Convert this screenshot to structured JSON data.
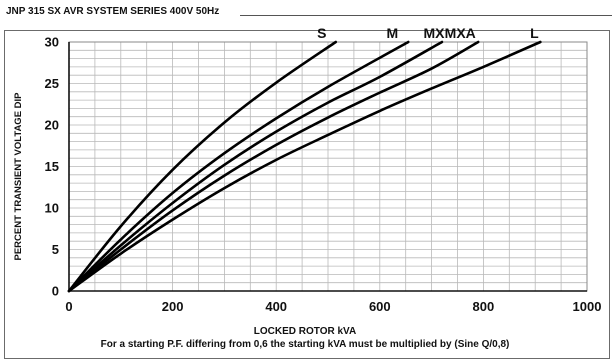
{
  "header": {
    "title": "JNP 315 SX AVR SYSTEM SERIES 400V 50Hz"
  },
  "chart_data": {
    "type": "line",
    "title": "",
    "xlabel": "LOCKED ROTOR kVA",
    "ylabel": "PERCENT TRANSIENT VOLTAGE DIP",
    "note": "For a starting P.F. differing from 0,6 the starting kVA must be multiplied by (Sine Q/0,8)",
    "xlim": [
      0,
      1000
    ],
    "ylim": [
      0,
      30
    ],
    "x_ticks": [
      "0",
      "200",
      "400",
      "600",
      "800",
      "1000"
    ],
    "y_ticks": [
      "0",
      "5",
      "10",
      "15",
      "20",
      "25",
      "30"
    ],
    "grid": true,
    "legend": "labels at curve ends (top)",
    "line_color": "#000000",
    "series": [
      {
        "name": "S",
        "x": [
          0,
          100,
          200,
          300,
          400,
          515
        ],
        "y": [
          0,
          7.8,
          14.6,
          20.3,
          25.1,
          30
        ]
      },
      {
        "name": "M",
        "x": [
          0,
          100,
          200,
          300,
          400,
          500,
          655
        ],
        "y": [
          0,
          6.2,
          11.8,
          16.6,
          20.8,
          24.6,
          30
        ]
      },
      {
        "name": "MX",
        "x": [
          0,
          100,
          200,
          300,
          400,
          500,
          600,
          720
        ],
        "y": [
          0,
          5.5,
          10.6,
          15.2,
          19.2,
          22.7,
          25.8,
          30
        ]
      },
      {
        "name": "MXA",
        "x": [
          0,
          100,
          200,
          300,
          400,
          500,
          600,
          700,
          790
        ],
        "y": [
          0,
          5.0,
          9.7,
          13.9,
          17.6,
          20.9,
          23.9,
          26.8,
          30
        ]
      },
      {
        "name": "L",
        "x": [
          0,
          100,
          200,
          300,
          400,
          500,
          600,
          700,
          800,
          910
        ],
        "y": [
          0,
          4.5,
          8.6,
          12.4,
          15.8,
          18.8,
          21.7,
          24.4,
          27.0,
          30
        ]
      }
    ]
  }
}
